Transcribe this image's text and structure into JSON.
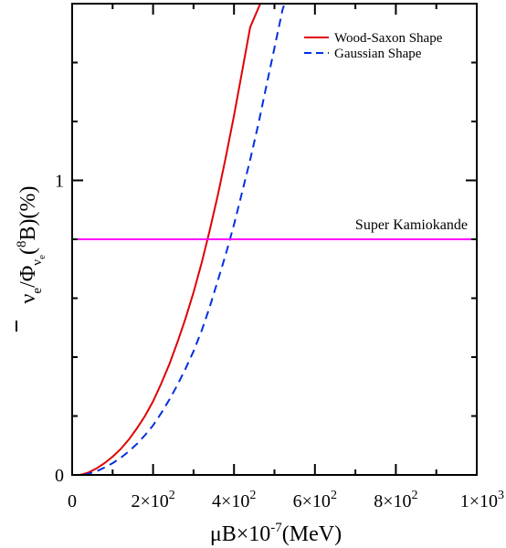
{
  "chart_data": {
    "type": "line",
    "xlim": [
      0,
      1000
    ],
    "ylim": [
      0,
      1.6
    ],
    "x_ticks": [
      {
        "value": 0,
        "label_parts": [
          "0"
        ]
      },
      {
        "value": 200,
        "label_parts": [
          "2×10",
          "2"
        ]
      },
      {
        "value": 400,
        "label_parts": [
          "4×10",
          "2"
        ]
      },
      {
        "value": 600,
        "label_parts": [
          "6×10",
          "2"
        ]
      },
      {
        "value": 800,
        "label_parts": [
          "8×10",
          "2"
        ]
      },
      {
        "value": 1000,
        "label_parts": [
          "1×10",
          "3"
        ]
      }
    ],
    "y_ticks": [
      {
        "value": 0,
        "label": "0"
      },
      {
        "value": 1,
        "label": "1"
      }
    ],
    "xlabel": {
      "base": "μB×10",
      "sup": "-7",
      "tail": "(MeV)"
    },
    "ylabel": {
      "nu": "ν",
      "sub_e": "e",
      "slash_phi": "/Φ",
      "sub_nu": "ν",
      "sub_nu_e": "e",
      "paren_open": "(",
      "sup_8": "8",
      "tail": "B)(%)"
    },
    "series": [
      {
        "name": "Wood-Saxon Shape",
        "color": "#e00000",
        "dash": "solid",
        "points": [
          [
            20,
            0
          ],
          [
            40,
            0.008
          ],
          [
            60,
            0.022
          ],
          [
            80,
            0.04
          ],
          [
            100,
            0.062
          ],
          [
            120,
            0.088
          ],
          [
            140,
            0.12
          ],
          [
            160,
            0.158
          ],
          [
            180,
            0.2
          ],
          [
            200,
            0.25
          ],
          [
            220,
            0.31
          ],
          [
            240,
            0.375
          ],
          [
            260,
            0.45
          ],
          [
            280,
            0.53
          ],
          [
            300,
            0.62
          ],
          [
            320,
            0.72
          ],
          [
            340,
            0.83
          ],
          [
            360,
            0.95
          ],
          [
            380,
            1.08
          ],
          [
            400,
            1.22
          ],
          [
            420,
            1.37
          ],
          [
            440,
            1.52
          ],
          [
            465,
            1.6
          ]
        ]
      },
      {
        "name": "Gaussian Shape",
        "color": "#0030e0",
        "dash": "dashed",
        "points": [
          [
            30,
            0
          ],
          [
            60,
            0.012
          ],
          [
            80,
            0.025
          ],
          [
            100,
            0.04
          ],
          [
            120,
            0.058
          ],
          [
            140,
            0.08
          ],
          [
            160,
            0.105
          ],
          [
            180,
            0.135
          ],
          [
            200,
            0.168
          ],
          [
            220,
            0.21
          ],
          [
            240,
            0.255
          ],
          [
            260,
            0.305
          ],
          [
            280,
            0.36
          ],
          [
            300,
            0.42
          ],
          [
            320,
            0.49
          ],
          [
            340,
            0.57
          ],
          [
            360,
            0.66
          ],
          [
            380,
            0.75
          ],
          [
            400,
            0.85
          ],
          [
            420,
            0.96
          ],
          [
            440,
            1.07
          ],
          [
            460,
            1.19
          ],
          [
            480,
            1.32
          ],
          [
            500,
            1.45
          ],
          [
            520,
            1.58
          ],
          [
            525,
            1.6
          ]
        ]
      },
      {
        "name": "Super Kamiokande",
        "color": "#ff00ff",
        "dash": "solid",
        "points": [
          [
            0,
            0.8
          ],
          [
            1000,
            0.8
          ]
        ]
      }
    ],
    "legend": {
      "position": "top-right",
      "entries": [
        "Wood-Saxon Shape",
        "Gaussian Shape"
      ]
    },
    "annotation": "Super Kamiokande"
  }
}
